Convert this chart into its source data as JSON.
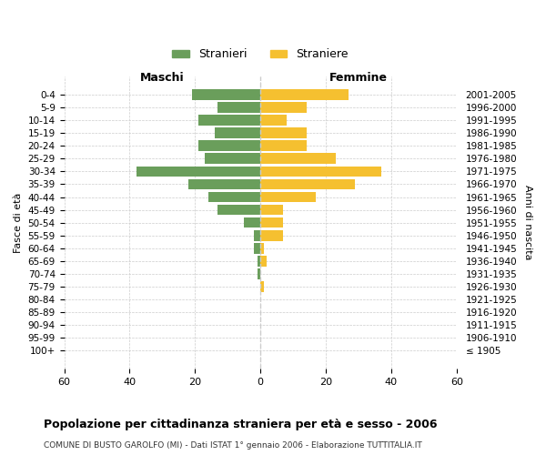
{
  "age_groups": [
    "100+",
    "95-99",
    "90-94",
    "85-89",
    "80-84",
    "75-79",
    "70-74",
    "65-69",
    "60-64",
    "55-59",
    "50-54",
    "45-49",
    "40-44",
    "35-39",
    "30-34",
    "25-29",
    "20-24",
    "15-19",
    "10-14",
    "5-9",
    "0-4"
  ],
  "birth_years": [
    "≤ 1905",
    "1906-1910",
    "1911-1915",
    "1916-1920",
    "1921-1925",
    "1926-1930",
    "1931-1935",
    "1936-1940",
    "1941-1945",
    "1946-1950",
    "1951-1955",
    "1956-1960",
    "1961-1965",
    "1966-1970",
    "1971-1975",
    "1976-1980",
    "1981-1985",
    "1986-1990",
    "1991-1995",
    "1996-2000",
    "2001-2005"
  ],
  "maschi": [
    0,
    0,
    0,
    0,
    0,
    0,
    1,
    1,
    2,
    2,
    5,
    13,
    16,
    22,
    38,
    17,
    19,
    14,
    19,
    13,
    21
  ],
  "femmine": [
    0,
    0,
    0,
    0,
    0,
    1,
    0,
    2,
    1,
    7,
    7,
    7,
    17,
    29,
    37,
    23,
    14,
    14,
    8,
    14,
    27
  ],
  "color_maschi": "#6a9e5b",
  "color_femmine": "#f5c030",
  "title": "Popolazione per cittadinanza straniera per età e sesso - 2006",
  "subtitle": "COMUNE DI BUSTO GAROLFO (MI) - Dati ISTAT 1° gennaio 2006 - Elaborazione TUTTITALIA.IT",
  "xlabel_left": "Maschi",
  "xlabel_right": "Femmine",
  "ylabel_left": "Fasce di età",
  "ylabel_right": "Anni di nascita",
  "xlim": 60,
  "legend_maschi": "Stranieri",
  "legend_femmine": "Straniere",
  "bg_color": "#ffffff",
  "grid_color": "#cccccc",
  "bar_height": 0.85
}
